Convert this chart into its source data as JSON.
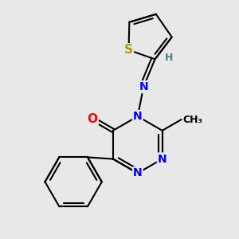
{
  "background_color": "#e8e8e8",
  "atom_colors": {
    "C": "#000000",
    "N": "#0000ff",
    "O": "#ff0000",
    "S": "#b8960c",
    "H": "#4a8080"
  },
  "bond_color": "#000000",
  "bond_width": 1.5,
  "fig_width": 3.0,
  "fig_height": 3.0,
  "dpi": 100
}
